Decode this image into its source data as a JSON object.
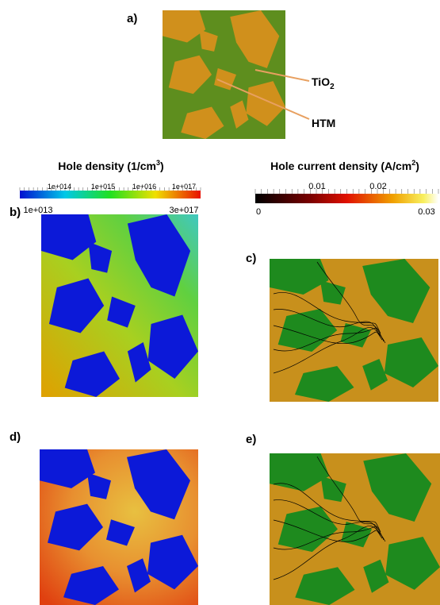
{
  "panels": {
    "a": "a)",
    "b": "b)",
    "c": "c)",
    "d": "d)",
    "e": "e)"
  },
  "annotations": {
    "tio2": {
      "main": "TiO",
      "sub": "2"
    },
    "htm": "HTM"
  },
  "hole_density_colorbar": {
    "title": {
      "main": "Hole density (1/cm",
      "sup": "3",
      "end": ")"
    },
    "top_labels": [
      "1e+014",
      "1e+015",
      "1e+016",
      "1e+017"
    ],
    "bottom_labels": [
      "1e+013",
      "3e+017"
    ]
  },
  "hole_current_colorbar": {
    "title": {
      "main": "Hole current density (A/cm",
      "sup": "2",
      "end": ")"
    },
    "top_labels": [
      "0.01",
      "0.02"
    ],
    "bottom_labels": [
      "0",
      "0.03"
    ]
  }
}
